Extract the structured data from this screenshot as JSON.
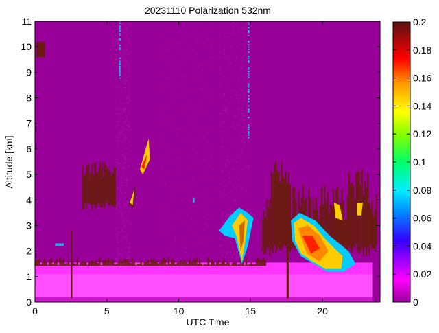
{
  "chart_data": {
    "type": "heatmap",
    "title": "20231110 Polarization 532nm",
    "xlabel": "UTC Time",
    "ylabel": "Altitude [km]",
    "xlim": [
      0,
      24
    ],
    "ylim": [
      0,
      11
    ],
    "x_ticks": [
      "0",
      "5",
      "10",
      "15",
      "20"
    ],
    "y_ticks": [
      "0",
      "1",
      "2",
      "3",
      "4",
      "5",
      "6",
      "7",
      "8",
      "9",
      "10",
      "11"
    ],
    "colorbar": {
      "min": 0,
      "max": 0.2,
      "ticks": [
        "0",
        "0.02",
        "0.04",
        "0.06",
        "0.08",
        "0.1",
        "0.12",
        "0.14",
        "0.16",
        "0.18",
        "0.2"
      ]
    },
    "colors": {
      "background": "#990099",
      "near_surface_low": "#ff33ff",
      "surface_bright": "#ff66ff",
      "aerosol_layer": "#6b1a14",
      "cloud_edge": "#00ccff",
      "cloud_core": "#ffcc00",
      "cloud_peak": "#ff2200"
    },
    "regions": [
      {
        "feature": "near-surface depolarization layer",
        "x": [
          0,
          24
        ],
        "y": [
          0,
          1.6
        ],
        "value": 0.01
      },
      {
        "feature": "boundary layer top",
        "x": [
          0,
          16
        ],
        "y": [
          1.4,
          1.75
        ],
        "value": 0.2
      },
      {
        "feature": "elevated aerosol layer",
        "x": [
          3.3,
          5.6
        ],
        "y": [
          3.6,
          5.4
        ],
        "value": 0.2
      },
      {
        "feature": "aerosol plume",
        "x": [
          6.5,
          9
        ],
        "y": [
          3.5,
          6.4
        ],
        "value": 0.15
      },
      {
        "feature": "thin cloud",
        "x": [
          12.8,
          15.2
        ],
        "y": [
          1.5,
          3.7
        ],
        "value": 0.1
      },
      {
        "feature": "aerosol layer",
        "x": [
          15.8,
          23.8
        ],
        "y": [
          1.8,
          5.6
        ],
        "value": 0.2
      },
      {
        "feature": "mixed-phase cloud",
        "x": [
          17.6,
          22.5
        ],
        "y": [
          1.2,
          3.6
        ],
        "value": 0.15
      },
      {
        "feature": "cirrus",
        "x": [
          5.8,
          6.2
        ],
        "y": [
          8.6,
          11
        ],
        "value": 0.05
      },
      {
        "feature": "cirrus",
        "x": [
          14.7,
          15.1
        ],
        "y": [
          6.2,
          11
        ],
        "value": 0.05
      }
    ]
  }
}
